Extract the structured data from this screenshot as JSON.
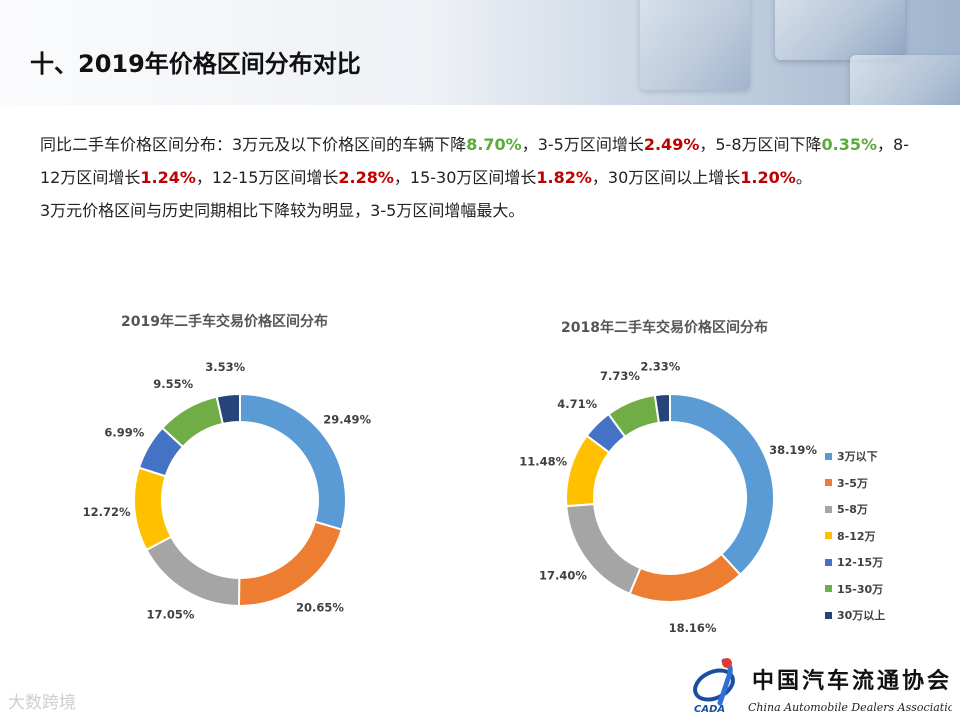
{
  "page": {
    "title": "十、2019年价格区间分布对比",
    "summary": {
      "p1_a": "同比二手车价格区间分布：3万元及以下价格区间的车辆下降",
      "p1_b": "8.70%",
      "p1_c": "，3-5万区间增长",
      "p1_d": "2.49%",
      "p1_e": "，5-8万区间下降",
      "p1_f": "0.35%",
      "p1_g": "，8-12万区间增长",
      "p1_h": "1.24%",
      "p1_i": "，12-15万区间增长",
      "p1_j": "2.28%",
      "p1_k": "，15-30万区间增长",
      "p1_l": "1.82%",
      "p1_m": "，30万区间以上增长",
      "p1_n": "1.20%",
      "p1_o": "。",
      "p2": "3万元价格区间与历史同期相比下降较为明显，3-5万区间增幅最大。"
    },
    "colors": {
      "accent_green": "#5aab3a",
      "accent_red": "#c00000"
    },
    "logo": {
      "name_cn": "中国汽车流通协会",
      "name_en": "China Automobile Dealers Association",
      "abbr": "CADA"
    },
    "watermark": "大数跨境"
  },
  "chart_data": [
    {
      "type": "pie",
      "subtype": "donut",
      "title": "2019年二手车交易价格区间分布",
      "categories": [
        "3万以下",
        "3-5万",
        "5-8万",
        "8-12万",
        "12-15万",
        "15-30万",
        "30万以上"
      ],
      "values": [
        29.49,
        20.65,
        17.05,
        12.72,
        6.99,
        9.55,
        3.53
      ],
      "labels": [
        "29.49%",
        "20.65%",
        "17.05%",
        "12.72%",
        "6.99%",
        "9.55%",
        "3.53%"
      ],
      "colors": [
        "#5b9bd5",
        "#ed7d31",
        "#a5a5a5",
        "#ffc000",
        "#4472c4",
        "#70ad47",
        "#264478"
      ],
      "legend": "none"
    },
    {
      "type": "pie",
      "subtype": "donut",
      "title": "2018年二手车交易价格区间分布",
      "categories": [
        "3万以下",
        "3-5万",
        "5-8万",
        "8-12万",
        "12-15万",
        "15-30万",
        "30万以上"
      ],
      "values": [
        38.19,
        18.16,
        17.4,
        11.48,
        4.71,
        7.73,
        2.33
      ],
      "labels": [
        "38.19%",
        "18.16%",
        "17.40%",
        "11.48%",
        "4.71%",
        "7.73%",
        "2.33%"
      ],
      "colors": [
        "#5b9bd5",
        "#ed7d31",
        "#a5a5a5",
        "#ffc000",
        "#4472c4",
        "#70ad47",
        "#264478"
      ],
      "legend": "right"
    }
  ]
}
